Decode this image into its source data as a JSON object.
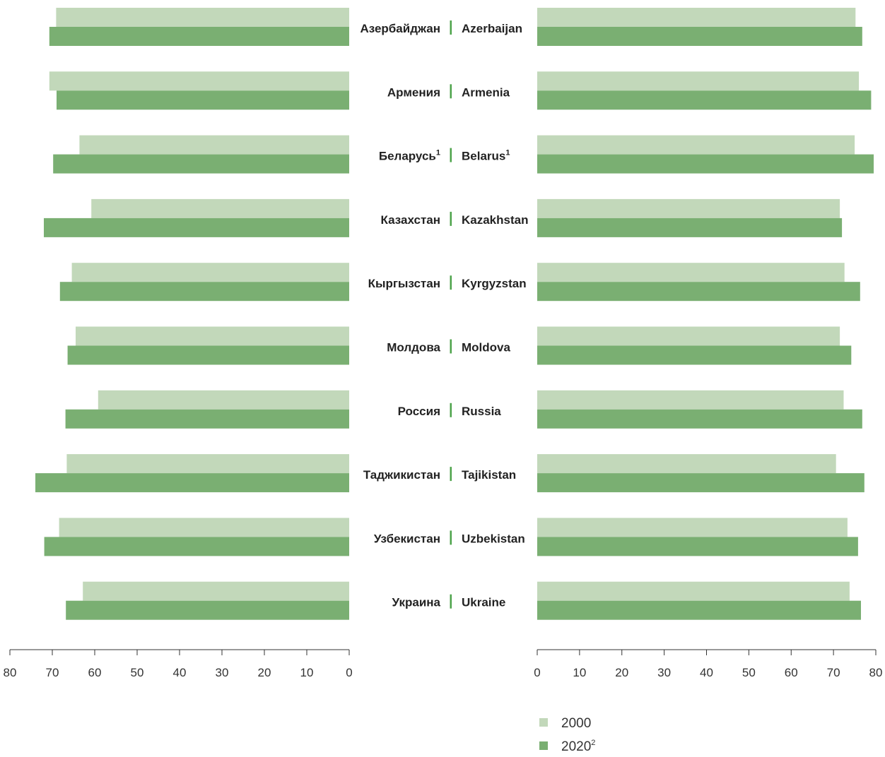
{
  "colors": {
    "2000": "#c2d8ba",
    "2020": "#7aaf72",
    "separator": "#4ca34a",
    "axis": "#333333"
  },
  "chart_data": {
    "type": "bar",
    "orientation": "horizontal",
    "layout": "butterfly",
    "xlim": [
      0,
      80
    ],
    "ticks": [
      0,
      10,
      20,
      30,
      40,
      50,
      60,
      70,
      80
    ],
    "grid": false,
    "legend_position": "bottom-right",
    "categories": [
      {
        "ru": "Азербайджан",
        "en": "Azerbaijan",
        "note": ""
      },
      {
        "ru": "Армения",
        "en": "Armenia",
        "note": ""
      },
      {
        "ru": "Беларусь",
        "en": "Belarus",
        "note": "1"
      },
      {
        "ru": "Казахстан",
        "en": "Kazakhstan",
        "note": ""
      },
      {
        "ru": "Кыргызстан",
        "en": "Kyrgyzstan",
        "note": ""
      },
      {
        "ru": "Молдова",
        "en": "Moldova",
        "note": ""
      },
      {
        "ru": "Россия",
        "en": "Russia",
        "note": ""
      },
      {
        "ru": "Таджикистан",
        "en": "Tajikistan",
        "note": ""
      },
      {
        "ru": "Узбекистан",
        "en": "Uzbekistan",
        "note": ""
      },
      {
        "ru": "Украина",
        "en": "Ukraine",
        "note": ""
      }
    ],
    "panels": [
      {
        "side": "left",
        "series": [
          {
            "name": "2000",
            "values": [
              69.1,
              70.7,
              63.6,
              60.8,
              65.4,
              64.5,
              59.2,
              66.6,
              68.4,
              62.8
            ]
          },
          {
            "name": "2020",
            "values": [
              70.7,
              69.0,
              69.8,
              72.0,
              68.2,
              66.4,
              66.9,
              74.0,
              71.9,
              66.8
            ]
          }
        ]
      },
      {
        "side": "right",
        "series": [
          {
            "name": "2000",
            "values": [
              75.2,
              76.0,
              75.0,
              71.5,
              72.6,
              71.5,
              72.4,
              70.6,
              73.3,
              73.8
            ]
          },
          {
            "name": "2020",
            "values": [
              76.8,
              78.9,
              79.5,
              72.0,
              76.3,
              74.2,
              76.8,
              77.3,
              75.8,
              76.5
            ]
          }
        ]
      }
    ],
    "legend": [
      {
        "label": "2000",
        "note": ""
      },
      {
        "label": "2020",
        "note": "2"
      }
    ]
  }
}
